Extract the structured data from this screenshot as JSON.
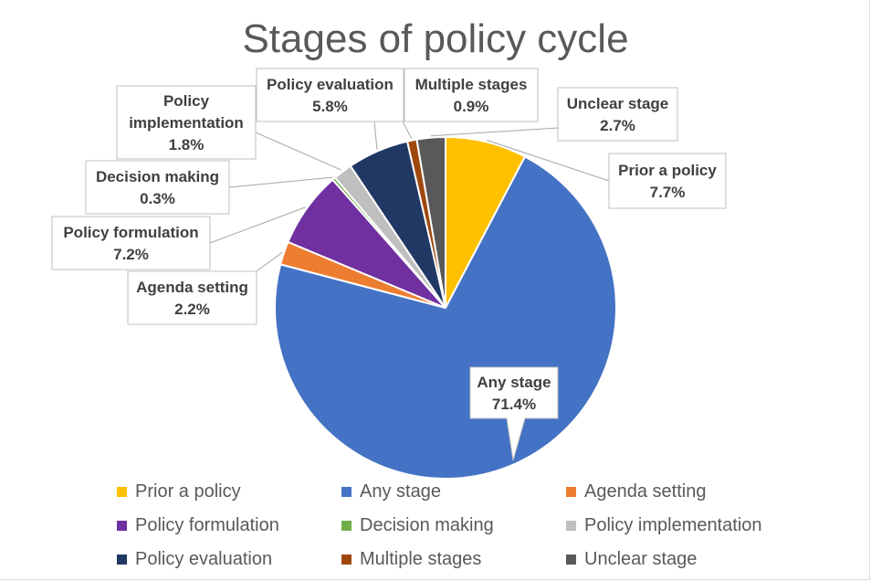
{
  "chart_data": {
    "type": "pie",
    "title": "Stages of policy cycle",
    "categories": [
      "Prior a policy",
      "Any stage",
      "Agenda setting",
      "Policy formulation",
      "Decision making",
      "Policy implementation",
      "Policy evaluation",
      "Multiple stages",
      "Unclear stage"
    ],
    "values": [
      7.7,
      71.4,
      2.2,
      7.2,
      0.3,
      1.8,
      5.8,
      0.9,
      2.7
    ],
    "value_labels": [
      "7.7%",
      "71.4%",
      "2.2%",
      "7.2%",
      "0.3%",
      "1.8%",
      "5.8%",
      "0.9%",
      "2.7%"
    ],
    "callout_lines": [
      [
        "Prior a policy"
      ],
      [
        "Any stage"
      ],
      [
        "Agenda setting"
      ],
      [
        "Policy formulation"
      ],
      [
        "Decision making"
      ],
      [
        "Policy",
        "implementation"
      ],
      [
        "Policy evaluation"
      ],
      [
        "Multiple stages"
      ],
      [
        "Unclear stage"
      ]
    ],
    "colors": [
      "#FFC000",
      "#4472C4",
      "#ED7D31",
      "#7030A0",
      "#70AD47",
      "#BFBFBF",
      "#203864",
      "#9E480E",
      "#595959"
    ],
    "legend_position": "bottom"
  }
}
